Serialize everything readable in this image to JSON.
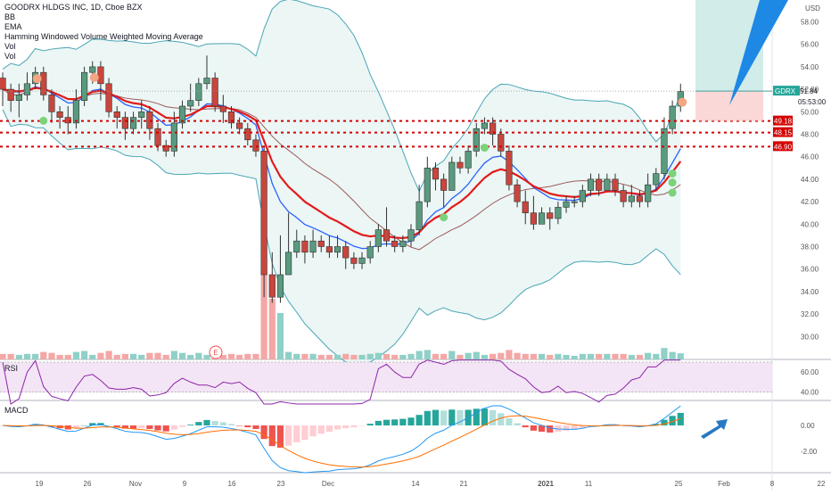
{
  "chart_data": [
    {
      "type": "candlestick",
      "title": "GOODRX HLDGS INC, 1D, Cboe BZX",
      "indicators": [
        "BB",
        "EMA",
        "Hamming Windowed Volume Weighted Moving Average",
        "Vol",
        "Vol"
      ],
      "currency": "USD",
      "ticker_label": "GDRX",
      "last_price": "51.84",
      "countdown": "05:53:00",
      "level_labels": [
        "49.18",
        "48.15",
        "46.90"
      ],
      "ylim": [
        28.5,
        60.2
      ],
      "y_ticks": [
        "58.00",
        "56.00",
        "54.00",
        "52.00",
        "50.00",
        "48.00",
        "46.00",
        "44.00",
        "42.00",
        "40.00",
        "38.00",
        "36.00",
        "34.00",
        "32.00",
        "30.00"
      ],
      "x_ticks": [
        "19",
        "26",
        "Nov",
        "9",
        "16",
        "23",
        "Dec",
        "14",
        "21",
        "2021",
        "11",
        "25",
        "Feb",
        "8",
        "22"
      ],
      "candles": [
        [
          53,
          52,
          53.5,
          50.5
        ],
        [
          52,
          51,
          52.5,
          50
        ],
        [
          51,
          51.5,
          52.5,
          49.5
        ],
        [
          51.5,
          52.5,
          53.5,
          51
        ],
        [
          52.5,
          53.5,
          54,
          52
        ],
        [
          53.5,
          51.5,
          54,
          51
        ],
        [
          51.5,
          50,
          52,
          49
        ],
        [
          50,
          49.5,
          50.5,
          48.5
        ],
        [
          49.5,
          49,
          50.5,
          48
        ],
        [
          49,
          51,
          52,
          48.5
        ],
        [
          51,
          53.5,
          54,
          50.5
        ],
        [
          53.5,
          54,
          54.5,
          52.5
        ],
        [
          54,
          52.5,
          54.5,
          51
        ],
        [
          52.5,
          50,
          53,
          49.5
        ],
        [
          50,
          49.5,
          50.5,
          48.5
        ],
        [
          49.5,
          48.5,
          50,
          47.5
        ],
        [
          48.5,
          49.5,
          50,
          48
        ],
        [
          49.5,
          50,
          51,
          48.5
        ],
        [
          50,
          48.5,
          50.5,
          47.5
        ],
        [
          48.5,
          47,
          49,
          46.5
        ],
        [
          47,
          46.5,
          47.5,
          46
        ],
        [
          46.5,
          49,
          50,
          46
        ],
        [
          49,
          50.5,
          51,
          48.5
        ],
        [
          50.5,
          51,
          52.5,
          50
        ],
        [
          51,
          52.5,
          53,
          50.5
        ],
        [
          52.5,
          53,
          55,
          52
        ],
        [
          53,
          50.5,
          53.5,
          50
        ],
        [
          50.5,
          50,
          51.5,
          49
        ],
        [
          50,
          49,
          50.5,
          48.5
        ],
        [
          49,
          48.5,
          49.5,
          48
        ],
        [
          48.5,
          47.5,
          49,
          47
        ],
        [
          47.5,
          46.5,
          48,
          46
        ],
        [
          46.5,
          35.5,
          47,
          33.5
        ],
        [
          35.5,
          33.5,
          37.5,
          33
        ],
        [
          33.5,
          35.5,
          39,
          33
        ],
        [
          35.5,
          37.5,
          41,
          35.5
        ],
        [
          37.5,
          38.5,
          39.5,
          37
        ],
        [
          38.5,
          37.5,
          39,
          36.5
        ],
        [
          37.5,
          38.5,
          39.5,
          37
        ],
        [
          38.5,
          38,
          39,
          37.5
        ],
        [
          38,
          37.5,
          39,
          37
        ],
        [
          37.5,
          38,
          39,
          37
        ],
        [
          38,
          37,
          38.5,
          36
        ],
        [
          37,
          36.5,
          37.5,
          36
        ],
        [
          36.5,
          37,
          37.5,
          36
        ],
        [
          37,
          38,
          38.5,
          36.5
        ],
        [
          38,
          39.5,
          40,
          37.5
        ],
        [
          39.5,
          38.5,
          41.5,
          38
        ],
        [
          38.5,
          38,
          39,
          37.5
        ],
        [
          38,
          38.5,
          39,
          37.5
        ],
        [
          38.5,
          39.5,
          40,
          38
        ],
        [
          39.5,
          42,
          43.5,
          39
        ],
        [
          42,
          45,
          46,
          41.5
        ],
        [
          45,
          44,
          45.5,
          43
        ],
        [
          44,
          43,
          44.5,
          41.5
        ],
        [
          43,
          45.5,
          46,
          43
        ],
        [
          45.5,
          45,
          46,
          44.5
        ],
        [
          45,
          46.5,
          47,
          44.5
        ],
        [
          46.5,
          48.5,
          49,
          46
        ],
        [
          48.5,
          49,
          49.5,
          48
        ],
        [
          49,
          48,
          49.5,
          47
        ],
        [
          48,
          46.5,
          48.5,
          46
        ],
        [
          46.5,
          43.5,
          47,
          43
        ],
        [
          43.5,
          42,
          44,
          41.5
        ],
        [
          42,
          41,
          43,
          40
        ],
        [
          41,
          40,
          42.5,
          39.5
        ],
        [
          40,
          41,
          41.5,
          40
        ],
        [
          41,
          40.5,
          41.5,
          39.5
        ],
        [
          40.5,
          41.5,
          42,
          40
        ],
        [
          41.5,
          42,
          42.5,
          41
        ],
        [
          42,
          42,
          42.5,
          41.5
        ],
        [
          42,
          43,
          43.5,
          41.5
        ],
        [
          43,
          44,
          44.5,
          42.5
        ],
        [
          44,
          43,
          44.5,
          42.5
        ],
        [
          43,
          44,
          44.5,
          43
        ],
        [
          44,
          43,
          44.5,
          42.5
        ],
        [
          43,
          42,
          43.5,
          41.5
        ],
        [
          42,
          42.5,
          43.5,
          41.5
        ],
        [
          42.5,
          42,
          43,
          41.5
        ],
        [
          42,
          43.5,
          44.5,
          41.5
        ],
        [
          43.5,
          44.5,
          45,
          43
        ],
        [
          44.5,
          48.5,
          49.5,
          44
        ],
        [
          48.5,
          50.5,
          51,
          48
        ],
        [
          50.5,
          51.8,
          52.5,
          50
        ]
      ],
      "events": [
        "E"
      ],
      "rsi_ticks": [
        "60.00",
        "40.00"
      ],
      "macd_ticks": [
        "0.00",
        "-2.00"
      ],
      "pane_labels": [
        "RSI",
        "MACD"
      ]
    }
  ],
  "colors": {
    "up": "#26a69a",
    "down": "#ef5350",
    "up_fill": "#5f9e87",
    "down_fill": "#d9534f",
    "bb_fill": "#e6f4f2",
    "bb_line": "#4aa5b5",
    "ema_blue": "#2962ff",
    "vwma_red": "#e31a1a",
    "ma_brown": "#9c5a5a",
    "rsi_line": "#8e24aa",
    "rsi_fill": "#f3e5f5",
    "macd_line": "#2196f3",
    "signal_line": "#ff6d00",
    "level_red": "#d50000",
    "arrow_blue": "#1e88e5"
  }
}
